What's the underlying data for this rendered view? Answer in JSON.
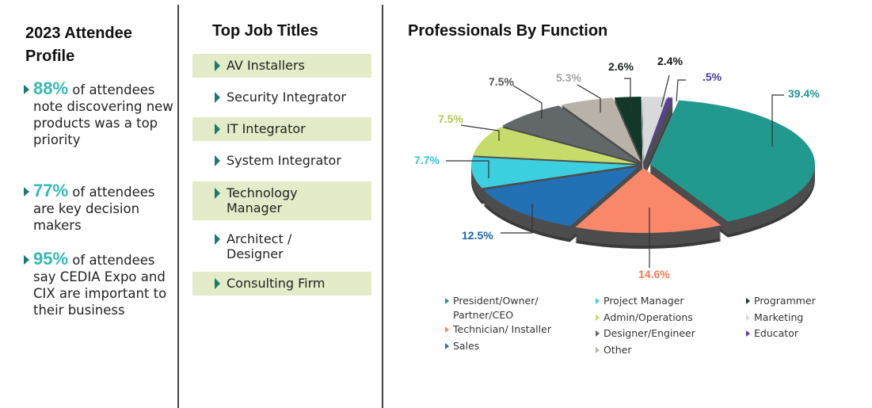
{
  "left": {
    "title": "2023 Attendee Profile",
    "stats": [
      {
        "pct": "88%",
        "text": " of attendees note discovering new products was a top priority"
      },
      {
        "pct": "77%",
        "text": " of attendees are key decision makers"
      },
      {
        "pct": "95%",
        "text": " of attendees say CEDIA Expo and CIX are important to their business"
      }
    ]
  },
  "middle": {
    "title": "Top Job Titles",
    "items": [
      "AV Installers",
      "Security Integrator",
      "IT Integrator",
      "System Integrator",
      "Technology Manager",
      "Architect / Designer",
      "Consulting Firm"
    ]
  },
  "chart_data": {
    "type": "pie",
    "title": "Professionals By Function",
    "legend_position": "bottom",
    "slices": [
      {
        "name": "President/Owner/ Partner/CEO",
        "value": 39.4,
        "label": "39.4%",
        "color": "#21998f"
      },
      {
        "name": "Technician/ Installer",
        "value": 14.6,
        "label": "14.6%",
        "color": "#f98769"
      },
      {
        "name": "Sales",
        "value": 12.5,
        "label": "12.5%",
        "color": "#2371b5"
      },
      {
        "name": "Project Manager",
        "value": 7.7,
        "label": "7.7%",
        "color": "#3ccfe0"
      },
      {
        "name": "Admin/Operations",
        "value": 7.5,
        "label": "7.5%",
        "color": "#c5dc6a"
      },
      {
        "name": "Designer/Engineer",
        "value": 7.5,
        "label": "7.5%",
        "color": "#62676a"
      },
      {
        "name": "Other",
        "value": 5.3,
        "label": "5.3%",
        "color": "#b8b2a8"
      },
      {
        "name": "Programmer",
        "value": 2.6,
        "label": "2.6%",
        "color": "#12382a"
      },
      {
        "name": "Marketing",
        "value": 2.4,
        "label": "2.4%",
        "color": "#d9dadc"
      },
      {
        "name": "Educator",
        "value": 0.5,
        "label": ".5%",
        "color": "#5a3ea0"
      }
    ],
    "label_colors": [
      "#22958c",
      "#f27a55",
      "#1f65a8",
      "#35c3d6",
      "#b5c84a",
      "#555555",
      "#a3a3a3",
      "#1a2520",
      "#111111",
      "#4b3a9a"
    ]
  }
}
